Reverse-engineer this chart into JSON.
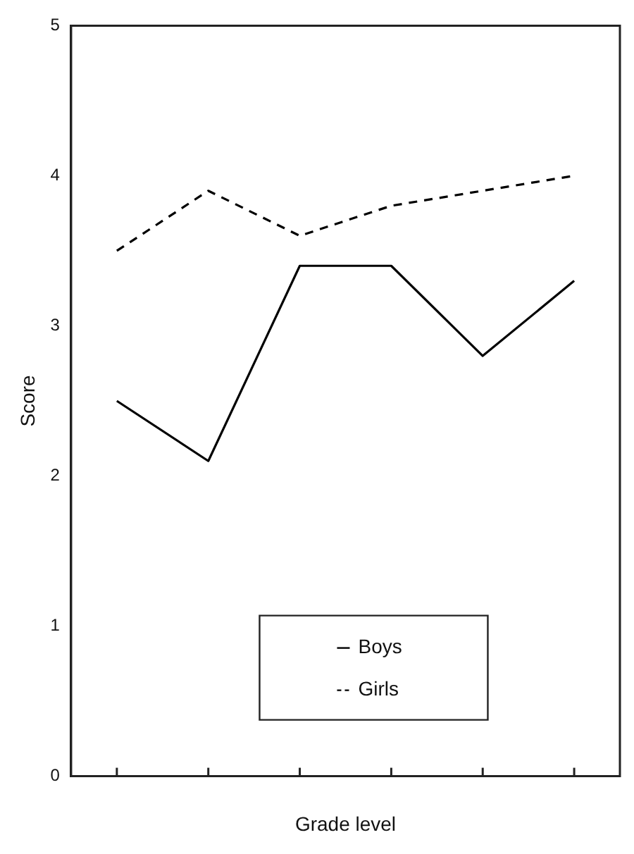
{
  "chart_data": {
    "type": "line",
    "xlabel": "Grade level",
    "ylabel": "Score",
    "categories": [
      null,
      null,
      null,
      null,
      null,
      null
    ],
    "ylim": [
      0,
      5
    ],
    "yticks": [
      0,
      1,
      2,
      3,
      4,
      5
    ],
    "grid": false,
    "legend": "bottom",
    "marker": "none",
    "series": [
      {
        "name": "Boys",
        "color": "#000000",
        "line_style": "solid",
        "values": [
          2.5,
          2.1,
          3.4,
          3.4,
          2.8,
          3.3
        ]
      },
      {
        "name": "Girls",
        "color": "#000000",
        "line_style": "dashed",
        "values": [
          3.5,
          3.9,
          3.6,
          3.8,
          3.9,
          4.0
        ]
      }
    ]
  }
}
